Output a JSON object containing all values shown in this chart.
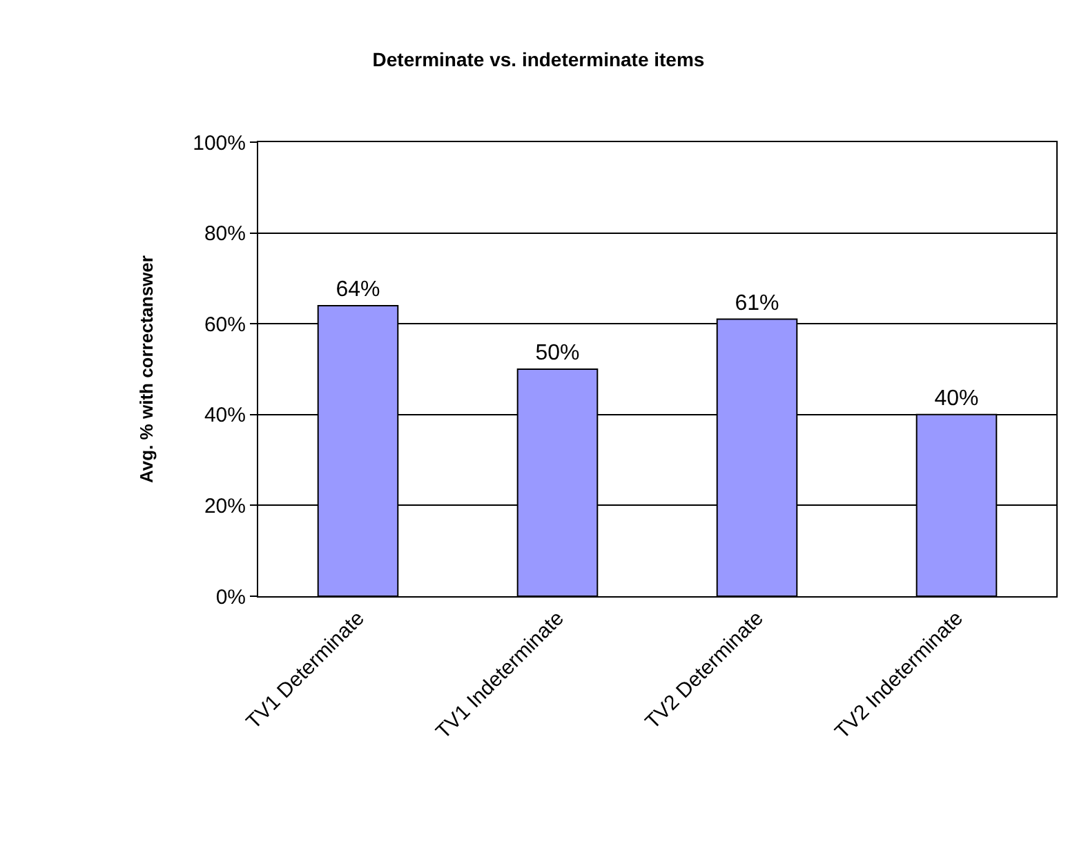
{
  "chart_data": {
    "type": "bar",
    "title": "Determinate vs. indeterminate items",
    "ylabel": "Avg. % with correctanswer",
    "categories": [
      "TV1 Determinate",
      "TV1 Indeterminate",
      "TV2 Determinate",
      "TV2 Indeterminate"
    ],
    "values": [
      64,
      50,
      61,
      40
    ],
    "value_labels": [
      "64%",
      "50%",
      "61%",
      "40%"
    ],
    "color": "#9999ff",
    "ylim": [
      0,
      100
    ],
    "yticks": [
      {
        "value": 0,
        "label": "0%"
      },
      {
        "value": 20,
        "label": "20%"
      },
      {
        "value": 40,
        "label": "40%"
      },
      {
        "value": 60,
        "label": "60%"
      },
      {
        "value": 80,
        "label": "80%"
      },
      {
        "value": 100,
        "label": "100%"
      }
    ],
    "grid": "y"
  }
}
